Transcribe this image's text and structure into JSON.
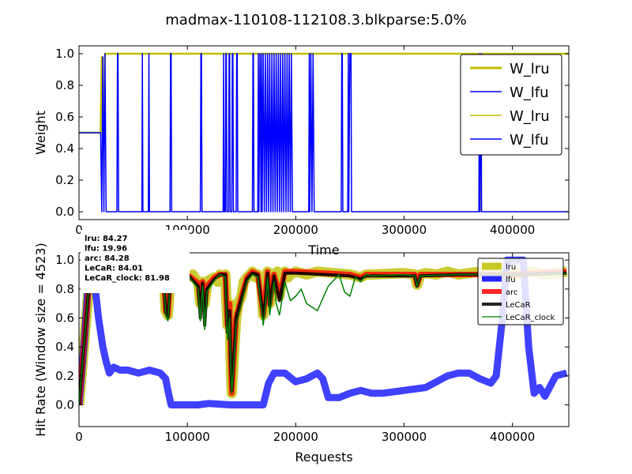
{
  "figure_title": "madmax-110108-112108.3.blkparse:5.0%",
  "colors": {
    "lru": "#bfbf00",
    "lfu": "#0000ff",
    "arc": "#ff0000",
    "lecar": "#000000",
    "lecar_clock": "#008000",
    "frame": "#000000",
    "legend_border": "#000000"
  },
  "chart_data": [
    {
      "type": "line",
      "title": "",
      "xlabel": "Time",
      "ylabel": "Weight",
      "xlim": [
        0,
        452000
      ],
      "ylim": [
        -0.05,
        1.05
      ],
      "xticks": [
        0,
        100000,
        200000,
        300000,
        400000
      ],
      "xtick_labels": [
        "0",
        "100000",
        "200000",
        "300000",
        "400000"
      ],
      "yticks": [
        0.0,
        0.2,
        0.4,
        0.6,
        0.8,
        1.0
      ],
      "ytick_labels": [
        "0.0",
        "0.2",
        "0.4",
        "0.6",
        "0.8",
        "1.0"
      ],
      "grid": false,
      "legend_position": "upper-right",
      "series": [
        {
          "name": "W_lru",
          "legend": "W_lru",
          "color": "#bfbf00",
          "x": [
            0,
            20000,
            21000,
            23000,
            24000,
            26000,
            40000,
            60000,
            100000,
            150000,
            200000,
            250000,
            300000,
            350000,
            369000,
            370000,
            371000,
            400000,
            452000
          ],
          "y": [
            0.5,
            0.5,
            0.98,
            0.5,
            1.0,
            1.0,
            1.0,
            1.0,
            1.0,
            1.0,
            1.0,
            1.0,
            1.0,
            1.0,
            1.0,
            0.0,
            1.0,
            1.0,
            1.0
          ]
        },
        {
          "name": "W_lfu",
          "legend": "W_lfu",
          "color": "#0000ff",
          "x": [
            0,
            20000,
            21000,
            22000,
            23000,
            24000,
            25000,
            26000,
            35000,
            35500,
            36000,
            36500,
            58000,
            58500,
            59000,
            64000,
            64500,
            65000,
            84000,
            84500,
            85000,
            85500,
            112000,
            112500,
            113000,
            113500,
            133000,
            133500,
            134000,
            135000,
            135500,
            136000,
            136500,
            138000,
            138500,
            139000,
            139500,
            141000,
            141500,
            142000,
            142500,
            145000,
            145500,
            146000,
            146500,
            160000,
            160500,
            161000,
            161500,
            165000,
            165500,
            166000,
            167000,
            168000,
            168500,
            169000,
            170000,
            171000,
            172000,
            173000,
            174000,
            175000,
            176000,
            177000,
            178000,
            179000,
            180000,
            181000,
            182000,
            183000,
            184000,
            185000,
            186000,
            187000,
            188000,
            189000,
            190000,
            191000,
            192000,
            193000,
            194000,
            195000,
            196000,
            197000,
            212000,
            212500,
            213000,
            214000,
            215000,
            216000,
            217000,
            242000,
            242500,
            243000,
            243500,
            248000,
            248500,
            249000,
            250000,
            251000,
            251500,
            369000,
            369500,
            370000,
            371000,
            371500,
            452000
          ],
          "y": [
            0.5,
            0.5,
            0.0,
            0.98,
            0.0,
            1.0,
            0.0,
            0.0,
            0.0,
            1.0,
            1.0,
            0.0,
            0.0,
            1.0,
            0.0,
            0.0,
            1.0,
            0.0,
            0.0,
            1.0,
            1.0,
            0.0,
            0.0,
            1.0,
            1.0,
            0.0,
            0.0,
            1.0,
            0.0,
            0.0,
            1.0,
            1.0,
            0.0,
            0.0,
            1.0,
            1.0,
            0.0,
            0.0,
            1.0,
            1.0,
            0.0,
            0.0,
            1.0,
            1.0,
            0.0,
            0.0,
            1.0,
            1.0,
            0.0,
            0.0,
            1.0,
            0.0,
            1.0,
            0.0,
            1.0,
            0.0,
            1.0,
            0.0,
            1.0,
            0.0,
            1.0,
            0.0,
            1.0,
            0.0,
            1.0,
            0.0,
            1.0,
            0.0,
            1.0,
            0.0,
            1.0,
            0.0,
            1.0,
            0.0,
            1.0,
            0.0,
            1.0,
            0.0,
            1.0,
            0.0,
            1.0,
            0.0,
            1.0,
            0.0,
            0.0,
            1.0,
            0.0,
            1.0,
            0.0,
            1.0,
            0.0,
            0.0,
            1.0,
            1.0,
            0.0,
            0.0,
            1.0,
            0.0,
            1.0,
            1.0,
            0.0,
            0.0,
            1.0,
            0.0,
            1.0,
            0.0,
            0.0
          ]
        }
      ],
      "legend": [
        "W_lru",
        "W_lfu",
        "W_lru",
        "W_lfu"
      ]
    },
    {
      "type": "line",
      "title": "",
      "xlabel": "Requests",
      "ylabel": "Hit Rate (Window size = 4523)",
      "xlim": [
        0,
        452000
      ],
      "ylim": [
        -0.15,
        1.05
      ],
      "xticks": [
        0,
        100000,
        200000,
        300000,
        400000
      ],
      "xtick_labels": [
        "0",
        "100000",
        "200000",
        "300000",
        "400000"
      ],
      "yticks": [
        0.0,
        0.2,
        0.4,
        0.6,
        0.8,
        1.0
      ],
      "ytick_labels": [
        "0.0",
        "0.2",
        "0.4",
        "0.6",
        "0.8",
        "1.0"
      ],
      "grid": false,
      "legend_position": "upper-right",
      "stats": [
        "lru:  84.27",
        "lfu:  19.96",
        "arc:  84.28",
        "LeCaR:  84.01",
        "LeCaR_clock:  81.98"
      ],
      "series": [
        {
          "name": "lru",
          "legend": "lru",
          "color": "#bfbf00",
          "x": [
            0,
            5000,
            10000,
            15000,
            78000,
            80000,
            82000,
            84000,
            88000,
            90000,
            95000,
            100000,
            105000,
            110000,
            112000,
            114000,
            116000,
            118000,
            120000,
            125000,
            128000,
            130000,
            133000,
            135000,
            137000,
            139000,
            140000,
            141000,
            143000,
            145000,
            147000,
            150000,
            152000,
            155000,
            158000,
            160000,
            163000,
            165000,
            168000,
            170000,
            172000,
            174000,
            176000,
            178000,
            180000,
            183000,
            185000,
            188000,
            190000,
            193000,
            195000,
            200000,
            210000,
            220000,
            250000,
            260000,
            265000,
            270000,
            300000,
            310000,
            312000,
            315000,
            320000,
            330000,
            340000,
            350000,
            360000,
            370000,
            380000,
            390000,
            400000,
            410000,
            420000,
            430000,
            440000,
            450000
          ],
          "y": [
            0.0,
            0.45,
            0.9,
            0.9,
            0.9,
            0.65,
            0.62,
            0.85,
            0.9,
            0.88,
            0.9,
            0.88,
            0.9,
            0.84,
            0.7,
            0.85,
            0.7,
            0.82,
            0.86,
            0.88,
            0.85,
            0.9,
            0.85,
            0.9,
            0.55,
            0.7,
            0.3,
            0.08,
            0.35,
            0.6,
            0.7,
            0.75,
            0.85,
            0.88,
            0.9,
            0.92,
            0.88,
            0.9,
            0.85,
            0.62,
            0.75,
            0.92,
            0.7,
            0.85,
            0.9,
            0.92,
            0.75,
            0.9,
            0.92,
            0.88,
            0.9,
            0.92,
            0.9,
            0.92,
            0.9,
            0.88,
            0.9,
            0.9,
            0.91,
            0.9,
            0.83,
            0.9,
            0.91,
            0.9,
            0.92,
            0.9,
            0.91,
            0.92,
            0.9,
            0.89,
            0.9,
            0.91,
            0.92,
            0.9,
            0.91,
            0.92
          ]
        },
        {
          "name": "lfu",
          "legend": "lfu",
          "color": "#0000ff",
          "x": [
            0,
            5000,
            10000,
            15000,
            18000,
            22000,
            25000,
            28000,
            32000,
            38000,
            45000,
            55000,
            65000,
            75000,
            80000,
            82000,
            85000,
            90000,
            100000,
            110000,
            120000,
            140000,
            160000,
            165000,
            170000,
            175000,
            180000,
            190000,
            200000,
            210000,
            220000,
            225000,
            230000,
            240000,
            250000,
            260000,
            270000,
            280000,
            300000,
            320000,
            330000,
            340000,
            350000,
            360000,
            370000,
            380000,
            385000,
            390000,
            395000,
            400000,
            410000,
            415000,
            420000,
            425000,
            430000,
            440000,
            450000
          ],
          "y": [
            0.0,
            0.45,
            1.0,
            0.8,
            0.6,
            0.4,
            0.3,
            0.22,
            0.26,
            0.24,
            0.24,
            0.22,
            0.24,
            0.22,
            0.18,
            0.1,
            0.0,
            0.0,
            0.0,
            0.0,
            0.01,
            0.0,
            0.0,
            0.0,
            0.0,
            0.15,
            0.22,
            0.22,
            0.16,
            0.18,
            0.22,
            0.18,
            0.05,
            0.05,
            0.08,
            0.1,
            0.08,
            0.08,
            0.1,
            0.12,
            0.16,
            0.2,
            0.22,
            0.22,
            0.18,
            0.15,
            0.2,
            0.55,
            1.0,
            1.0,
            1.0,
            0.4,
            0.08,
            0.12,
            0.06,
            0.2,
            0.22
          ]
        },
        {
          "name": "arc",
          "legend": "arc",
          "color": "#ff0000",
          "x": [
            0,
            5000,
            10000,
            15000,
            78000,
            80000,
            82000,
            84000,
            88000,
            100000,
            110000,
            112000,
            114000,
            116000,
            118000,
            125000,
            130000,
            135000,
            137000,
            139000,
            140000,
            141000,
            143000,
            145000,
            150000,
            155000,
            160000,
            165000,
            170000,
            172000,
            174000,
            176000,
            180000,
            185000,
            190000,
            200000,
            250000,
            260000,
            265000,
            270000,
            310000,
            312000,
            315000,
            350000,
            400000,
            450000
          ],
          "y": [
            0.0,
            0.45,
            0.9,
            0.9,
            0.9,
            0.65,
            0.62,
            0.85,
            0.9,
            0.9,
            0.84,
            0.7,
            0.85,
            0.7,
            0.82,
            0.88,
            0.9,
            0.9,
            0.55,
            0.7,
            0.3,
            0.08,
            0.35,
            0.6,
            0.75,
            0.88,
            0.92,
            0.9,
            0.62,
            0.75,
            0.92,
            0.7,
            0.9,
            0.75,
            0.92,
            0.92,
            0.9,
            0.88,
            0.9,
            0.9,
            0.9,
            0.83,
            0.9,
            0.9,
            0.9,
            0.92
          ]
        },
        {
          "name": "LeCaR",
          "legend": "LeCaR",
          "color": "#000000",
          "x": [
            0,
            5000,
            10000,
            15000,
            78000,
            80000,
            82000,
            84000,
            88000,
            100000,
            110000,
            112000,
            114000,
            116000,
            118000,
            125000,
            130000,
            135000,
            137000,
            139000,
            140000,
            141000,
            143000,
            145000,
            150000,
            155000,
            160000,
            165000,
            170000,
            172000,
            174000,
            176000,
            180000,
            185000,
            190000,
            200000,
            250000,
            260000,
            265000,
            270000,
            310000,
            312000,
            315000,
            350000,
            400000,
            450000
          ],
          "y": [
            0.0,
            0.45,
            0.9,
            0.9,
            0.9,
            0.64,
            0.6,
            0.84,
            0.9,
            0.9,
            0.82,
            0.6,
            0.84,
            0.55,
            0.8,
            0.87,
            0.9,
            0.9,
            0.5,
            0.65,
            0.3,
            0.1,
            0.35,
            0.6,
            0.74,
            0.87,
            0.91,
            0.9,
            0.6,
            0.72,
            0.91,
            0.68,
            0.89,
            0.72,
            0.91,
            0.91,
            0.89,
            0.87,
            0.89,
            0.89,
            0.89,
            0.82,
            0.89,
            0.9,
            0.9,
            0.91
          ]
        },
        {
          "name": "LeCaR_clock",
          "legend": "LeCaR_clock",
          "color": "#008000",
          "x": [
            0,
            5000,
            10000,
            15000,
            62000,
            63000,
            64000,
            78000,
            80000,
            82000,
            84000,
            88000,
            100000,
            110000,
            112000,
            114000,
            116000,
            118000,
            125000,
            130000,
            135000,
            137000,
            139000,
            140000,
            141000,
            143000,
            145000,
            150000,
            155000,
            160000,
            165000,
            170000,
            172000,
            174000,
            176000,
            180000,
            182000,
            185000,
            190000,
            195000,
            200000,
            205000,
            210000,
            220000,
            230000,
            240000,
            245000,
            250000,
            255000,
            260000,
            265000,
            270000,
            300000,
            310000,
            312000,
            315000,
            350000,
            400000,
            450000
          ],
          "y": [
            0.0,
            0.45,
            0.9,
            0.9,
            0.9,
            0.8,
            0.9,
            0.9,
            0.62,
            0.58,
            0.82,
            0.9,
            0.9,
            0.8,
            0.58,
            0.82,
            0.52,
            0.78,
            0.86,
            0.9,
            0.88,
            0.45,
            0.6,
            0.28,
            0.08,
            0.3,
            0.55,
            0.7,
            0.85,
            0.9,
            0.88,
            0.55,
            0.68,
            0.88,
            0.62,
            0.85,
            0.7,
            0.62,
            0.85,
            0.72,
            0.75,
            0.8,
            0.7,
            0.65,
            0.82,
            0.9,
            0.78,
            0.75,
            0.88,
            0.85,
            0.9,
            0.89,
            0.9,
            0.89,
            0.82,
            0.89,
            0.9,
            0.9,
            0.91
          ]
        }
      ],
      "legend": [
        "lru",
        "lfu",
        "arc",
        "LeCaR",
        "LeCaR_clock"
      ]
    }
  ]
}
